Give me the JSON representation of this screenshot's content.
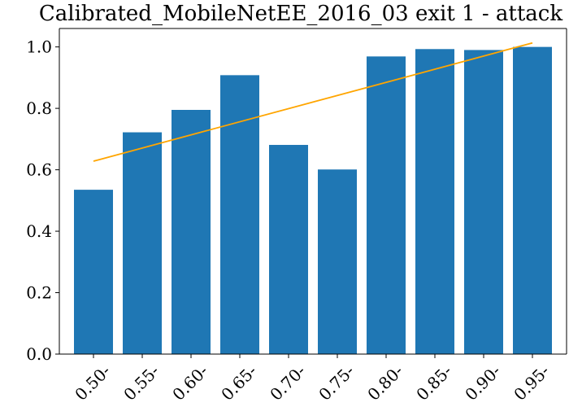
{
  "chart_data": {
    "type": "bar",
    "title": "Calibrated_MobileNetEE_2016_03 exit 1 - attack",
    "xlabel": "",
    "ylabel": "",
    "categories": [
      "0.50-",
      "0.55-",
      "0.60-",
      "0.65-",
      "0.70-",
      "0.75-",
      "0.80-",
      "0.85-",
      "0.90-",
      "0.95-"
    ],
    "values": [
      0.535,
      0.722,
      0.795,
      0.908,
      0.681,
      0.601,
      0.969,
      0.993,
      0.99,
      1.0
    ],
    "trend_line": {
      "x_start": 0,
      "x_end": 9,
      "y_start": 0.628,
      "y_end": 1.013
    },
    "ylim": [
      0,
      1.06
    ],
    "yticks": [
      0.0,
      0.2,
      0.4,
      0.6,
      0.8,
      1.0
    ],
    "ytick_labels": [
      "0.0",
      "0.2",
      "0.4",
      "0.6",
      "0.8",
      "1.0"
    ],
    "grid": false,
    "bar_color": "#1f77b4",
    "line_color": "#ffa500"
  }
}
